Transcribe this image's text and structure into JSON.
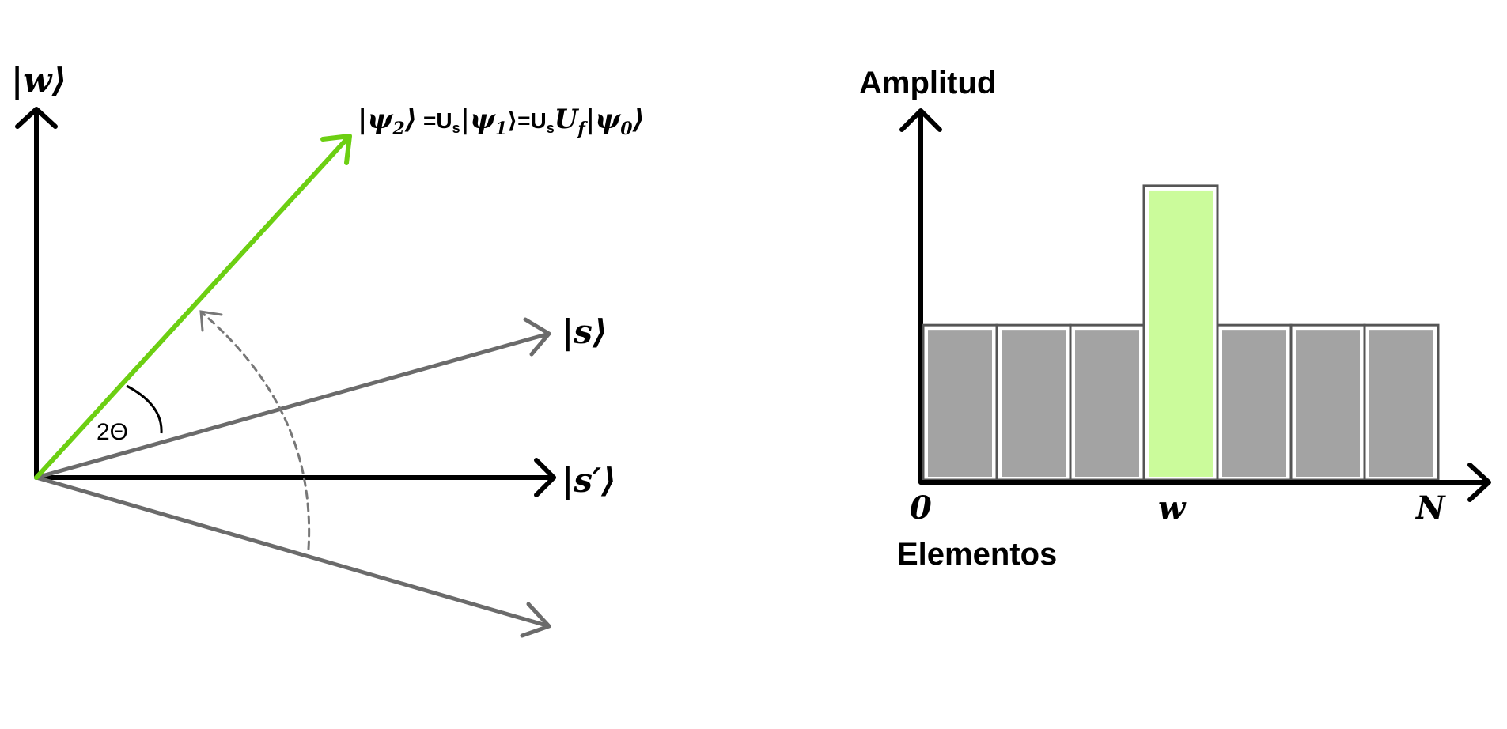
{
  "left_diagram": {
    "w_label": "|w⟩",
    "psi2_label": {
      "bra_left": "|",
      "psi": "ψ",
      "sub2": "2",
      "ket_right": "⟩",
      "eq1": " =U",
      "sub_s1": "s",
      "bar1": "|",
      "sub1": "1",
      "ket1": "⟩=U",
      "sub_s2": "s",
      "U": "U",
      "sub_f": "f",
      "bar2": "|",
      "sub0": "0",
      "ket0": "⟩"
    },
    "s_label": "|s⟩",
    "s_prime_label": "|s′⟩",
    "angle_label": "2Θ",
    "colors": {
      "green": "#6ccf12",
      "gray": "#6b6b6b"
    }
  },
  "chart_data": {
    "type": "bar",
    "title": "",
    "ylabel": "Amplitud",
    "xlabel": "Elementos",
    "tick_labels": {
      "start": "0",
      "marked": "w",
      "end": "N"
    },
    "values": [
      1,
      1,
      1,
      1.9,
      1,
      1,
      1
    ],
    "highlight_index": 3,
    "ylim": [
      0,
      2.4
    ],
    "colors": {
      "normal": "#a3a3a3",
      "highlight": "#cbfb9b",
      "outline": "#555555"
    }
  }
}
